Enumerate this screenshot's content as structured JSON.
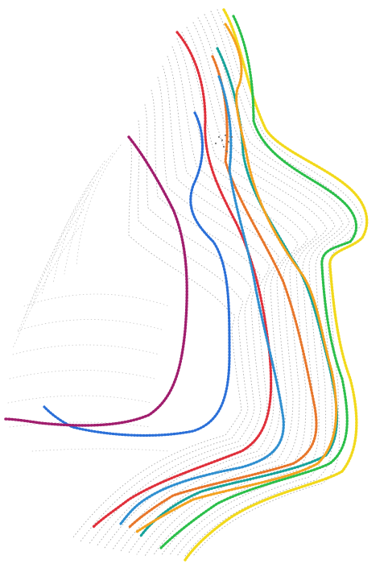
{
  "figure": {
    "subject": "face-profile-point-cloud",
    "background": "#ffffff",
    "mesh_color": "#9a9a9a",
    "contour_colors": [
      "#f2d91b",
      "#f4a21f",
      "#2bbf4a",
      "#17a39a",
      "#e8762a",
      "#2f8fd0",
      "#e02f3a",
      "#2a6fd8",
      "#a01d6d"
    ]
  }
}
